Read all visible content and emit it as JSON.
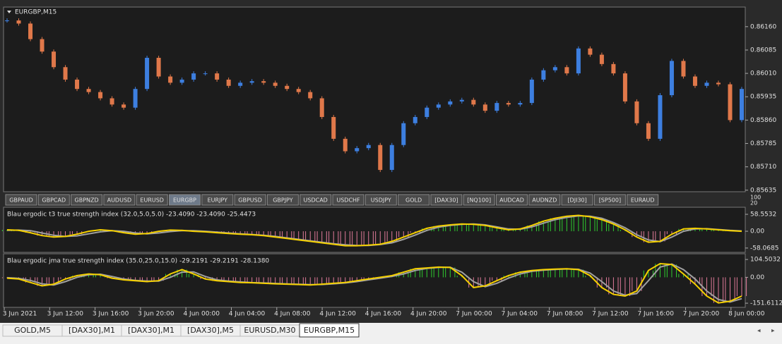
{
  "window": {
    "title": "EURGBP,M15"
  },
  "price": {
    "ylim": [
      0.8563,
      0.86223
    ],
    "yticks": [
      {
        "value": 0.8616,
        "label": "0.86160"
      },
      0.86085,
      {
        "value": 0.8601,
        "label": "0.86010"
      },
      0.85935,
      {
        "value": 0.8586,
        "label": "0.85860"
      },
      0.85785,
      {
        "value": 0.8571,
        "label": "0.85710"
      },
      0.85635
    ],
    "up_color": "#3d7fe0",
    "down_color": "#e0784a",
    "close": [
      0.8618,
      0.8617,
      0.8612,
      0.8608,
      0.8603,
      0.8599,
      0.8596,
      0.8595,
      0.8593,
      0.8591,
      0.859,
      0.8596,
      0.8606,
      0.86,
      0.8598,
      0.8599,
      0.8601,
      0.8601,
      0.8599,
      0.8597,
      0.8598,
      0.85985,
      0.8598,
      0.8597,
      0.8596,
      0.8595,
      0.8593,
      0.8587,
      0.858,
      0.8576,
      0.8577,
      0.8578,
      0.857,
      0.8578,
      0.8585,
      0.8587,
      0.859,
      0.8591,
      0.8592,
      0.85925,
      0.8591,
      0.8589,
      0.85915,
      0.8591,
      0.85915,
      0.8599,
      0.8602,
      0.8603,
      0.8601,
      0.8609,
      0.8607,
      0.8604,
      0.8601,
      0.8592,
      0.8585,
      0.858,
      0.8594,
      0.8605,
      0.86,
      0.8597,
      0.8598,
      0.85975,
      0.8586,
      0.8596
    ]
  },
  "symbol_buttons": [
    "GBPAUD",
    "GBPCAD",
    "GBPNZD",
    "AUDUSD",
    "EURUSD",
    "EURGBP",
    "EURJPY",
    "GBPUSD",
    "GBPJPY",
    "USDCAD",
    "USDCHF",
    "USDJPY",
    "GOLD",
    "[DAX30]",
    "[NQ100]",
    "AUDCAD",
    "AUDNZD",
    "[DJI30]",
    "[SP500]",
    "EURAUD"
  ],
  "active_symbol": 5,
  "scale_labels": [
    "100",
    "20"
  ],
  "indicators": [
    {
      "label": "Blau ergodic t3 true strength index (32.0,5.0,5.0) -23.4090 -23.4090 -25.4473",
      "ylim": [
        -73,
        83
      ],
      "yticks": [
        58.5532,
        {
          "value": 0,
          "label": "0.00"
        },
        -58.0685
      ],
      "tsi": [
        5,
        3,
        -5,
        -15,
        -20,
        -18,
        -10,
        0,
        5,
        2,
        -5,
        -10,
        -8,
        0,
        4,
        3,
        0,
        -2,
        -5,
        -8,
        -10,
        -12,
        -15,
        -20,
        -25,
        -30,
        -35,
        -40,
        -45,
        -50,
        -50,
        -48,
        -45,
        -35,
        -20,
        -5,
        10,
        18,
        22,
        25,
        24,
        20,
        12,
        5,
        8,
        20,
        35,
        45,
        52,
        55,
        50,
        40,
        25,
        5,
        -20,
        -38,
        -35,
        -10,
        8,
        10,
        8,
        5,
        2,
        0
      ],
      "signal": [
        3,
        4,
        2,
        -6,
        -14,
        -18,
        -16,
        -9,
        -2,
        2,
        0,
        -6,
        -9,
        -6,
        -1,
        2,
        2,
        0,
        -3,
        -6,
        -9,
        -11,
        -14,
        -18,
        -23,
        -28,
        -33,
        -38,
        -43,
        -47,
        -49,
        -49,
        -46,
        -40,
        -28,
        -13,
        3,
        14,
        20,
        24,
        25,
        22,
        15,
        8,
        7,
        15,
        28,
        40,
        48,
        53,
        52,
        45,
        30,
        12,
        -12,
        -30,
        -36,
        -20,
        0,
        8,
        9,
        6,
        3,
        1
      ]
    },
    {
      "label": "Blau ergodic jma true strength index (35.0,25.0,15.0) -29.2191 -29.2191 -28.1380",
      "ylim": [
        -176,
        138
      ],
      "yticks": [
        104.5032,
        {
          "value": 0,
          "label": "0.00"
        },
        -151.6112
      ],
      "tsi": [
        -5,
        -10,
        -30,
        -50,
        -40,
        -10,
        10,
        20,
        15,
        -5,
        -15,
        -20,
        -25,
        -20,
        20,
        45,
        20,
        -10,
        -20,
        -25,
        -30,
        -32,
        -35,
        -38,
        -40,
        -42,
        -45,
        -40,
        -35,
        -30,
        -20,
        -10,
        0,
        10,
        30,
        50,
        55,
        60,
        58,
        10,
        -60,
        -50,
        -20,
        10,
        30,
        40,
        45,
        48,
        50,
        45,
        10,
        -60,
        -100,
        -110,
        -80,
        40,
        80,
        75,
        20,
        -40,
        -110,
        -150,
        -140,
        -110
      ],
      "signal": [
        -2,
        -6,
        -18,
        -38,
        -45,
        -25,
        0,
        15,
        18,
        5,
        -10,
        -18,
        -22,
        -22,
        0,
        30,
        32,
        5,
        -15,
        -22,
        -27,
        -31,
        -33,
        -36,
        -39,
        -41,
        -43,
        -42,
        -38,
        -33,
        -25,
        -15,
        -5,
        5,
        20,
        40,
        52,
        58,
        59,
        30,
        -25,
        -55,
        -35,
        -5,
        20,
        35,
        42,
        46,
        49,
        47,
        25,
        -25,
        -80,
        -105,
        -95,
        -20,
        60,
        78,
        45,
        -10,
        -80,
        -130,
        -145,
        -125
      ]
    }
  ],
  "hist_up_color": "#2ecc2e",
  "hist_down_color": "#e07a9a",
  "tsi_color": "#f5d000",
  "signal_color": "#a0a0a0",
  "time_labels": [
    "3 Jun 2021",
    "3 Jun 12:00",
    "3 Jun 16:00",
    "3 Jun 20:00",
    "4 Jun 00:00",
    "4 Jun 04:00",
    "4 Jun 08:00",
    "4 Jun 12:00",
    "4 Jun 16:00",
    "4 Jun 20:00",
    "7 Jun 00:00",
    "7 Jun 04:00",
    "7 Jun 08:00",
    "7 Jun 12:00",
    "7 Jun 16:00",
    "7 Jun 20:00",
    "8 Jun 00:00"
  ],
  "tabs": [
    "GOLD,M5",
    "[DAX30],M1",
    "[DAX30],M1",
    "[DAX30],M5",
    "EURUSD,M30",
    "EURGBP,M15"
  ],
  "active_tab": 5
}
